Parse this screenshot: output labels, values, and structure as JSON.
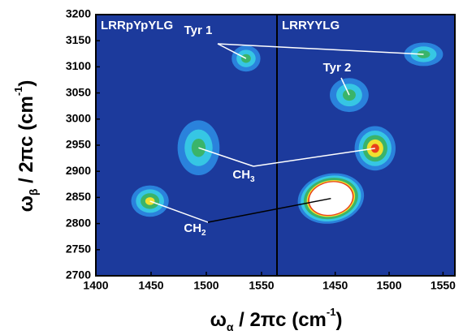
{
  "chart_data": {
    "type": "heatmap",
    "ylim": [
      2700,
      3200
    ],
    "yticks": [
      2700,
      2750,
      2800,
      2850,
      2900,
      2950,
      3000,
      3050,
      3100,
      3150,
      3200
    ],
    "ylabel": [
      "ω",
      "β",
      " / 2πc (cm",
      "-1",
      ")"
    ],
    "xlabel": [
      "ω",
      "α",
      " / 2πc (cm",
      "-1",
      ")"
    ],
    "background": "#1c3a9c",
    "colors": [
      "#2a82dc",
      "#36c6e4",
      "#3ab46a",
      "#f0e030",
      "#e8401c",
      "#ffffff"
    ],
    "panels": [
      {
        "title": "LRRpYpYLG",
        "xlim": [
          1400,
          1564
        ],
        "xticks": [
          1400,
          1450,
          1500,
          1550
        ],
        "peaks": [
          {
            "x": 1536,
            "y": 3116,
            "width": 26,
            "height": 50,
            "level": 3
          },
          {
            "x": 1493,
            "y": 2945,
            "width": 38,
            "height": 105,
            "level": 3
          },
          {
            "x": 1449,
            "y": 2843,
            "width": 34,
            "height": 60,
            "level": 4
          }
        ]
      },
      {
        "title": "LRRYYLG",
        "xlim": [
          1396,
          1561
        ],
        "xticks": [
          1450,
          1500,
          1550
        ],
        "peaks": [
          {
            "x": 1532,
            "y": 3124,
            "width": 36,
            "height": 45,
            "level": 3
          },
          {
            "x": 1463,
            "y": 3046,
            "width": 36,
            "height": 65,
            "level": 3
          },
          {
            "x": 1487,
            "y": 2944,
            "width": 38,
            "height": 85,
            "level": 5
          },
          {
            "x": 1446,
            "y": 2848,
            "width": 62,
            "height": 95,
            "level": 6
          }
        ]
      }
    ],
    "annotations": [
      {
        "text": "Tyr 1"
      },
      {
        "text": "Tyr 2"
      },
      {
        "text": "CH",
        "sub": "3"
      },
      {
        "text": "CH",
        "sub": "2"
      }
    ]
  }
}
